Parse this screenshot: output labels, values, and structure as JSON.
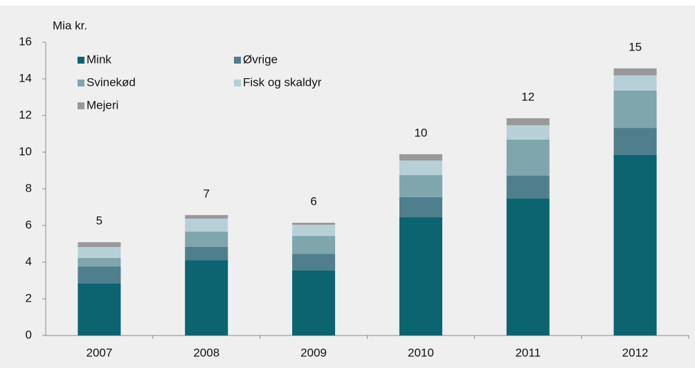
{
  "chart_data": {
    "type": "stacked_bar",
    "y_axis_label": "Mia kr.",
    "categories": [
      "2007",
      "2008",
      "2009",
      "2010",
      "2011",
      "2012"
    ],
    "series": [
      {
        "name": "Mink",
        "color": "#0b6470",
        "values": [
          2.83,
          4.11,
          3.55,
          6.45,
          7.47,
          9.85
        ]
      },
      {
        "name": "Øvrige",
        "color": "#4f7f8c",
        "values": [
          0.94,
          0.72,
          0.9,
          1.1,
          1.25,
          1.47
        ]
      },
      {
        "name": "Svinekød",
        "color": "#7fa5ad",
        "values": [
          0.46,
          0.83,
          0.98,
          1.2,
          1.96,
          2.04
        ]
      },
      {
        "name": "Fisk og skaldyr",
        "color": "#b7cfd6",
        "values": [
          0.6,
          0.72,
          0.61,
          0.8,
          0.79,
          0.83
        ]
      },
      {
        "name": "Mejeri",
        "color": "#999999",
        "values": [
          0.26,
          0.19,
          0.11,
          0.34,
          0.38,
          0.38
        ]
      }
    ],
    "total_labels": [
      "5",
      "7",
      "6",
      "10",
      "12",
      "15"
    ],
    "ylim": [
      0,
      16
    ],
    "yticks": [
      0,
      2,
      4,
      6,
      8,
      10,
      12,
      14,
      16
    ],
    "legend": "upper left"
  }
}
